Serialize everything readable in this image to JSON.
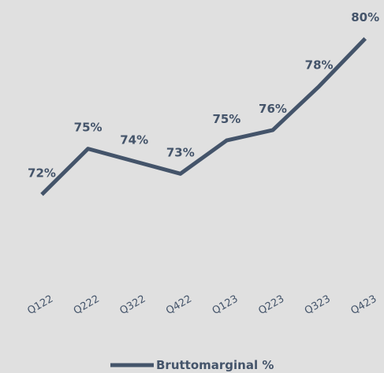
{
  "chart_data": {
    "type": "line",
    "categories": [
      "Q122",
      "Q222",
      "Q322",
      "Q422",
      "Q123",
      "Q223",
      "Q323",
      "Q423"
    ],
    "series": [
      {
        "name": "Bruttomarginal %",
        "color": "#44546a",
        "values": [
          72.4,
          74.6,
          74.0,
          73.4,
          75.0,
          75.5,
          77.6,
          79.9
        ],
        "value_labels": [
          "72%",
          "75%",
          "74%",
          "73%",
          "75%",
          "76%",
          "78%",
          "80%"
        ]
      }
    ],
    "ylim": [
      70,
      80.5
    ],
    "legend": "bottom"
  }
}
